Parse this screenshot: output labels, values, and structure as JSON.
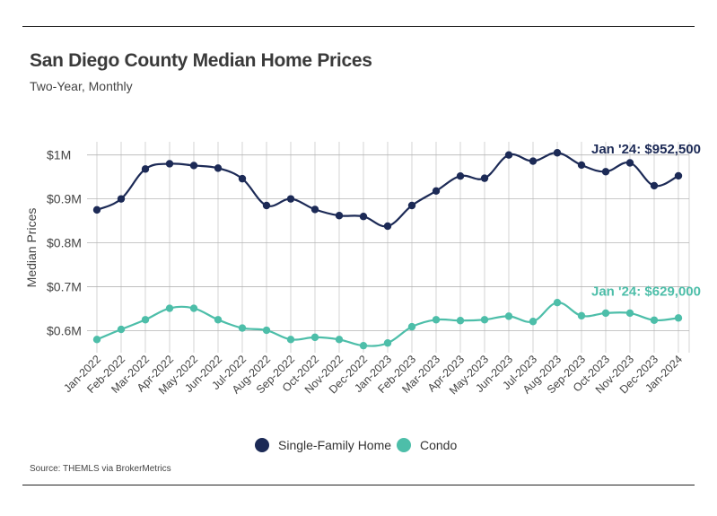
{
  "title": "San Diego County Median Home Prices",
  "subtitle": "Two-Year, Monthly",
  "source": "Source:  THEMLS via BrokerMetrics",
  "chart_data": {
    "type": "line",
    "ylabel": "Median Prices",
    "ylim": [
      550000,
      1030000
    ],
    "yticks": [
      600000,
      700000,
      800000,
      900000,
      1000000
    ],
    "ytick_labels": [
      "$0.6M",
      "$0.7M",
      "$0.8M",
      "$0.9M",
      "$1M"
    ],
    "grid": true,
    "legend_position": "bottom-center",
    "categories": [
      "Jan-2022",
      "Feb-2022",
      "Mar-2022",
      "Apr-2022",
      "May-2022",
      "Jun-2022",
      "Jul-2022",
      "Aug-2022",
      "Sep-2022",
      "Oct-2022",
      "Nov-2022",
      "Dec-2022",
      "Jan-2023",
      "Feb-2023",
      "Mar-2023",
      "Apr-2023",
      "May-2023",
      "Jun-2023",
      "Jul-2023",
      "Aug-2023",
      "Sep-2023",
      "Oct-2023",
      "Nov-2023",
      "Dec-2023",
      "Jan-2024"
    ],
    "series": [
      {
        "name": "Single-Family Home",
        "color": "#1c2a56",
        "values": [
          875000,
          900000,
          968000,
          980000,
          976000,
          970000,
          946000,
          885000,
          900000,
          876000,
          862000,
          860000,
          838000,
          885000,
          918000,
          952000,
          947000,
          1000000,
          986000,
          1005000,
          977000,
          962000,
          982000,
          930000,
          952500
        ],
        "annotation": "Jan '24: $952,500"
      },
      {
        "name": "Condo",
        "color": "#4dbea9",
        "values": [
          580000,
          603000,
          625000,
          651000,
          651000,
          625000,
          606000,
          601000,
          580000,
          585000,
          580000,
          566000,
          572000,
          609000,
          625000,
          623000,
          625000,
          633000,
          621000,
          664000,
          634000,
          640000,
          640000,
          624000,
          629000
        ],
        "annotation": "Jan '24: $629,000"
      }
    ]
  }
}
